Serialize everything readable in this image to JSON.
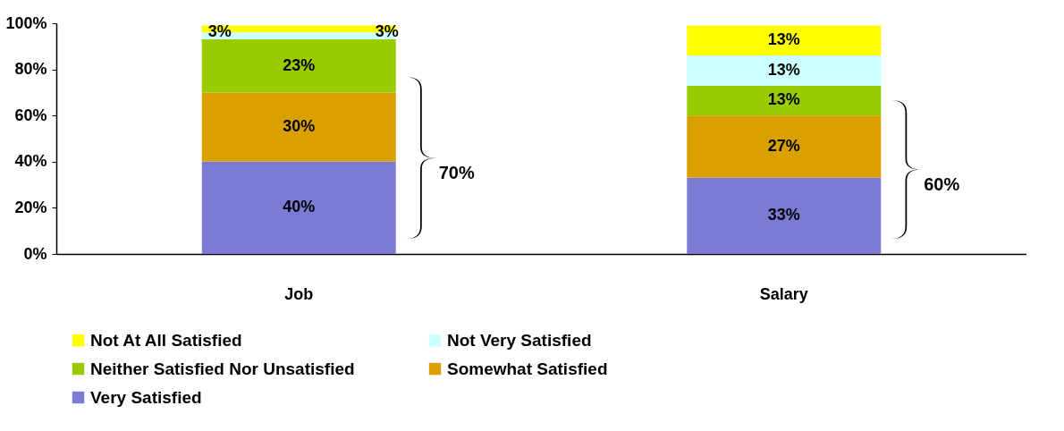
{
  "chart_data": {
    "type": "bar",
    "stacked": true,
    "categories": [
      "Job",
      "Salary"
    ],
    "series": [
      {
        "name": "Very Satisfied",
        "color": "#7b7bd6",
        "values": [
          40,
          33
        ]
      },
      {
        "name": "Somewhat Satisfied",
        "color": "#d9a000",
        "values": [
          30,
          27
        ]
      },
      {
        "name": "Neither Satisfied Nor Unsatisfied",
        "color": "#99cc00",
        "values": [
          23,
          13
        ]
      },
      {
        "name": "Not Very Satisfied",
        "color": "#ccffff",
        "values": [
          3,
          13
        ]
      },
      {
        "name": "Not At All Satisfied",
        "color": "#ffff00",
        "values": [
          3,
          13
        ]
      }
    ],
    "value_labels": [
      [
        "40%",
        "33%"
      ],
      [
        "30%",
        "27%"
      ],
      [
        "23%",
        "13%"
      ],
      [
        "3%",
        "13%"
      ],
      [
        "3%",
        "13%"
      ]
    ],
    "ylim": [
      0,
      100
    ],
    "yticks": [
      {
        "value": 0,
        "label": "0%"
      },
      {
        "value": 20,
        "label": "20%"
      },
      {
        "value": 40,
        "label": "40%"
      },
      {
        "value": 60,
        "label": "60%"
      },
      {
        "value": 80,
        "label": "80%"
      },
      {
        "value": 100,
        "label": "100%"
      }
    ],
    "annotations": [
      "70%",
      "60%"
    ],
    "grid": false,
    "legend": "bottom"
  }
}
